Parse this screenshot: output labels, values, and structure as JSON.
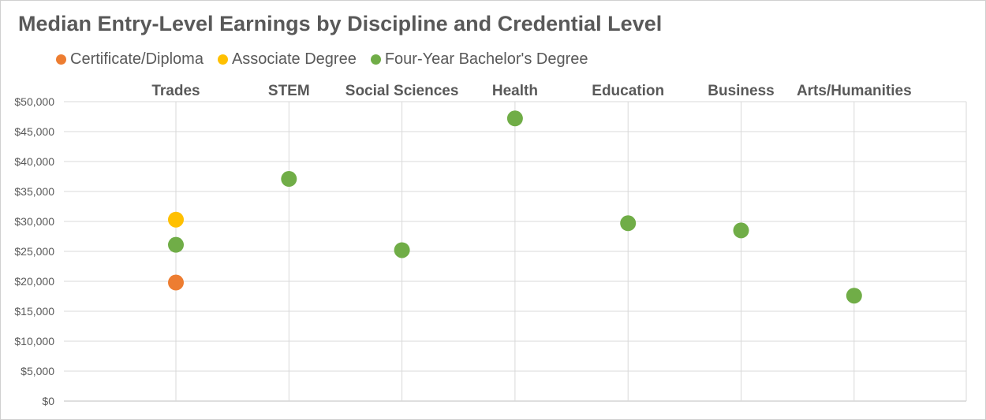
{
  "chart_data": {
    "type": "scatter",
    "title": "Median Entry-Level Earnings by Discipline and Credential Level",
    "categories": [
      "Trades",
      "STEM",
      "Social Sciences",
      "Health",
      "Education",
      "Business",
      "Arts/Humanities"
    ],
    "category_axis_position": "top",
    "xlabel": "",
    "ylabel": "",
    "ylim": [
      0,
      50000
    ],
    "y_ticks": [
      0,
      5000,
      10000,
      15000,
      20000,
      25000,
      30000,
      35000,
      40000,
      45000,
      50000
    ],
    "y_tick_labels": [
      "$0",
      "$5,000",
      "$10,000",
      "$15,000",
      "$20,000",
      "$25,000",
      "$30,000",
      "$35,000",
      "$40,000",
      "$45,000",
      "$50,000"
    ],
    "grid": true,
    "legend_position": "top-left",
    "series": [
      {
        "name": "Certificate/Diploma",
        "color": "#ED7D31",
        "points": [
          {
            "category": "Trades",
            "value": 19800
          }
        ]
      },
      {
        "name": "Associate Degree",
        "color": "#FFC000",
        "points": [
          {
            "category": "Trades",
            "value": 30300
          }
        ]
      },
      {
        "name": "Four-Year Bachelor's Degree",
        "color": "#70AD47",
        "points": [
          {
            "category": "Trades",
            "value": 26100
          },
          {
            "category": "STEM",
            "value": 37100
          },
          {
            "category": "Social Sciences",
            "value": 25200
          },
          {
            "category": "Health",
            "value": 47200
          },
          {
            "category": "Education",
            "value": 29700
          },
          {
            "category": "Business",
            "value": 28500
          },
          {
            "category": "Arts/Humanities",
            "value": 17600
          }
        ]
      }
    ]
  }
}
